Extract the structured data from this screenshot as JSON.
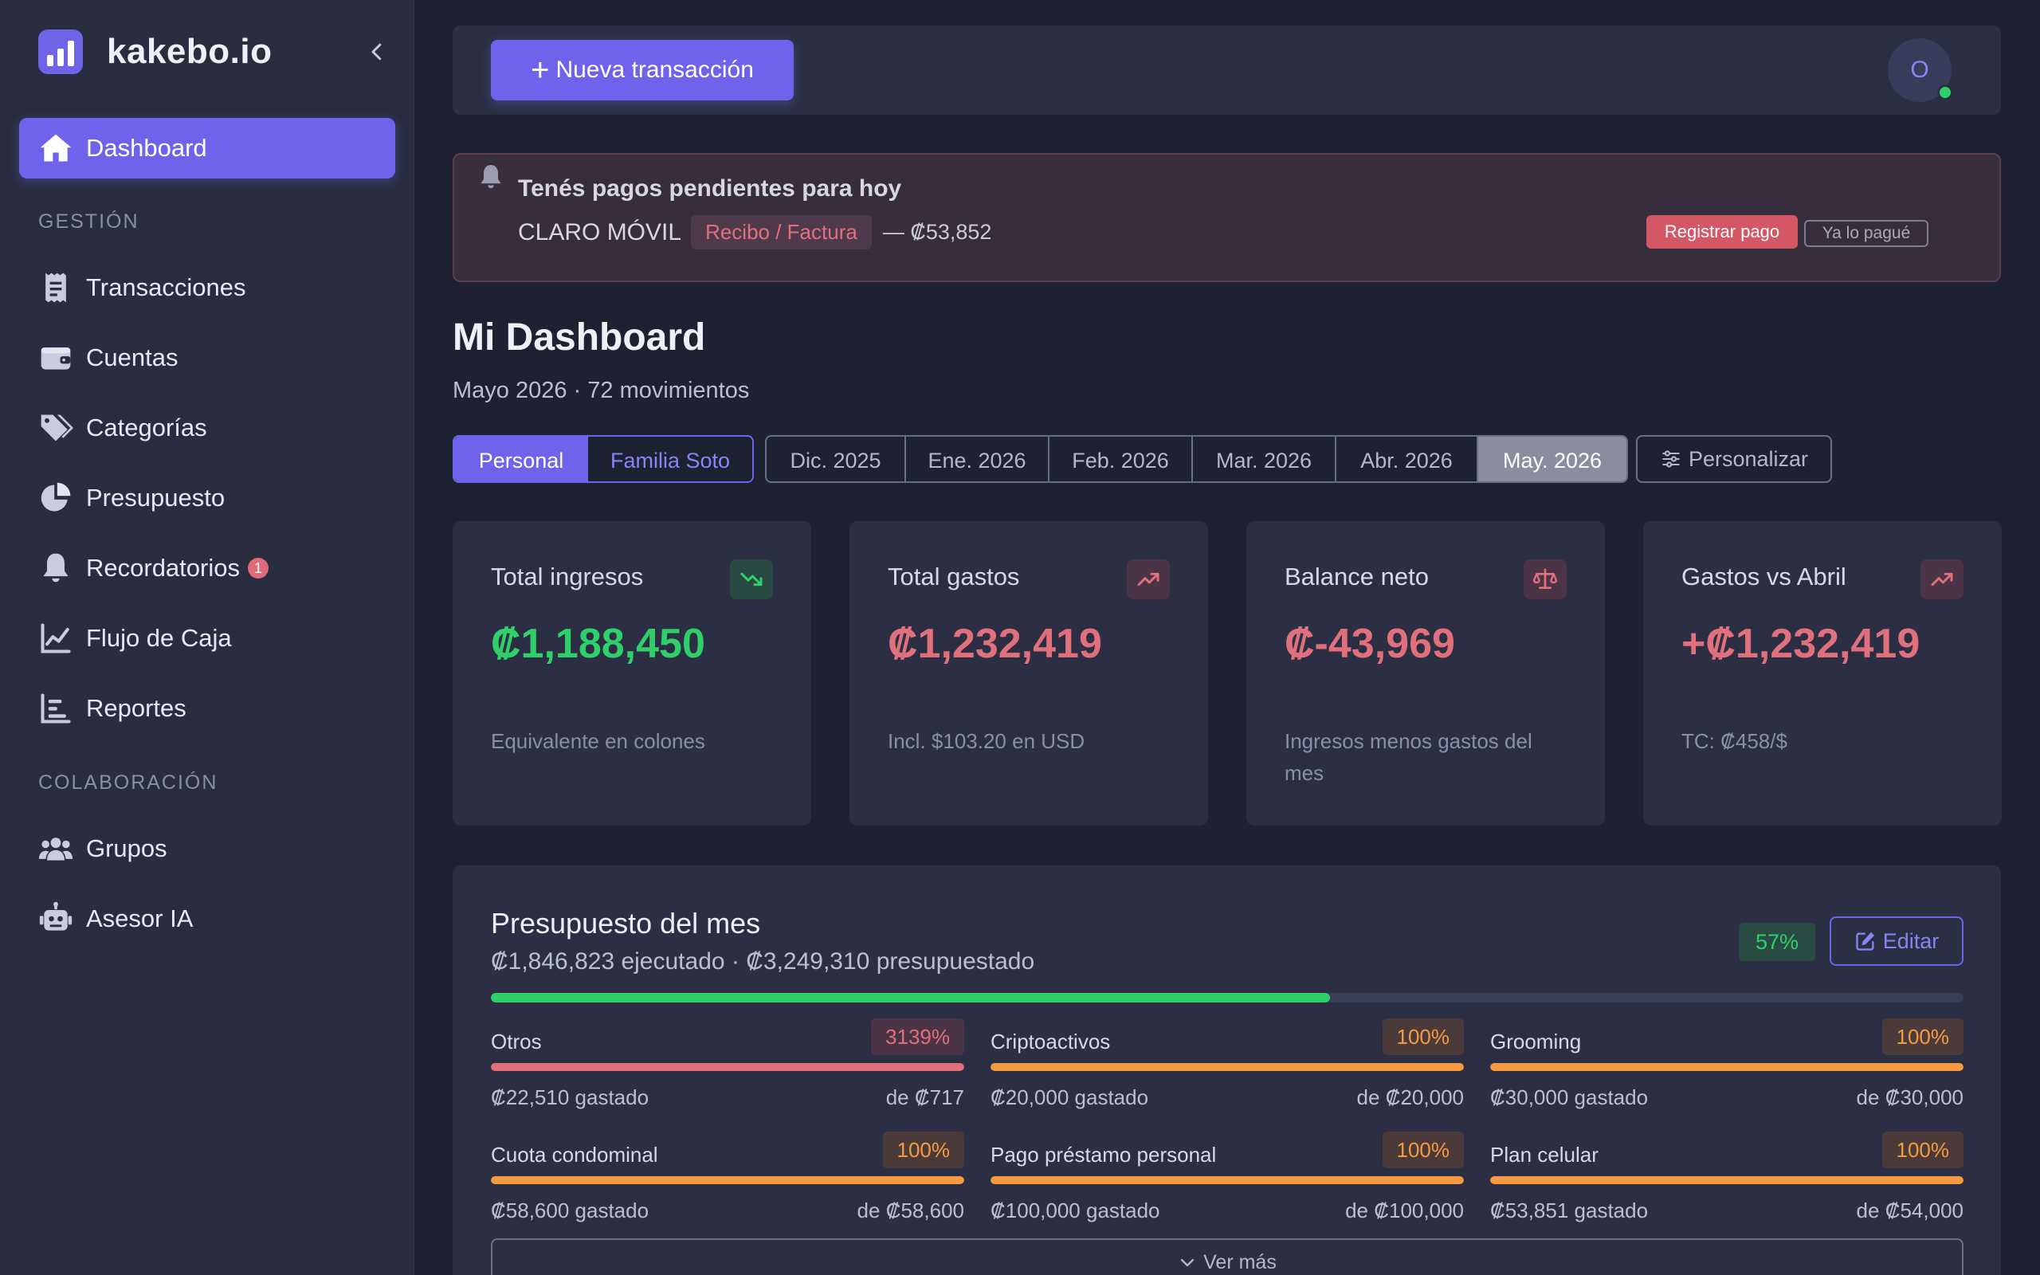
{
  "brand": {
    "name": "kakebo.io",
    "icon": "bar-chart-logo-icon"
  },
  "sidebar": {
    "active": {
      "label": "Dashboard",
      "icon": "home-icon"
    },
    "sections": [
      {
        "title": "GESTIÓN"
      },
      {
        "title": "COLABORACIÓN"
      }
    ],
    "items": [
      {
        "label": "Transacciones",
        "icon": "receipt-icon"
      },
      {
        "label": "Cuentas",
        "icon": "wallet-icon"
      },
      {
        "label": "Categorías",
        "icon": "tags-icon"
      },
      {
        "label": "Presupuesto",
        "icon": "pie-chart-icon"
      },
      {
        "label": "Recordatorios",
        "icon": "bell-icon",
        "badge": "1"
      },
      {
        "label": "Flujo de Caja",
        "icon": "line-chart-icon"
      },
      {
        "label": "Reportes",
        "icon": "bar-chart-icon"
      },
      {
        "label": "Grupos",
        "icon": "users-icon"
      },
      {
        "label": "Asesor IA",
        "icon": "robot-icon"
      }
    ]
  },
  "header": {
    "new_tx": "Nueva transacción",
    "avatar_initial": "O"
  },
  "alert": {
    "title": "Tenés pagos pendientes para hoy",
    "name": "CLARO MÓVIL",
    "tag": "Recibo / Factura",
    "amount": "— ₡53,852",
    "pay_label": "Registrar pago",
    "paid_label": "Ya lo pagué"
  },
  "page": {
    "title": "Mi Dashboard",
    "subtitle": "Mayo 2026 · 72 movimientos"
  },
  "filters": {
    "groups": [
      "Personal",
      "Familia Soto"
    ],
    "group_selected": "Personal",
    "months": [
      "Dic. 2025",
      "Ene. 2026",
      "Feb. 2026",
      "Mar. 2026",
      "Abr. 2026",
      "May. 2026"
    ],
    "month_selected": "May. 2026",
    "customize": "Personalizar"
  },
  "stats": [
    {
      "label": "Total ingresos",
      "value": "₡1,188,450",
      "note": "Equivalente en colones",
      "icon": "trending-down-icon",
      "color": "#2fd06a"
    },
    {
      "label": "Total gastos",
      "value": "₡1,232,419",
      "note": "Incl. $103.20 en USD",
      "icon": "trending-up-icon",
      "color": "#e0707c"
    },
    {
      "label": "Balance neto",
      "value": "₡-43,969",
      "note": "Ingresos menos gastos del mes",
      "icon": "scale-icon",
      "color": "#e0707c"
    },
    {
      "label": "Gastos vs Abril",
      "value": "+₡1,232,419",
      "note": "TC: ₡458/$",
      "icon": "trending-up-icon",
      "color": "#e0707c"
    }
  ],
  "budget": {
    "title": "Presupuesto del mes",
    "subtitle": "₡1,846,823 ejecutado · ₡3,249,310 presupuestado",
    "pct": "57%",
    "progress": 0.57,
    "edit_label": "Editar",
    "more_label": "Ver más",
    "items": [
      {
        "name": "Otros",
        "pct": "3139%",
        "spent": "₡22,510 gastado",
        "of": "de ₡717",
        "progress": 1.0,
        "color": "#e0707c"
      },
      {
        "name": "Criptoactivos",
        "pct": "100%",
        "spent": "₡20,000 gastado",
        "of": "de ₡20,000",
        "progress": 1.0,
        "color": "#f59a40"
      },
      {
        "name": "Grooming",
        "pct": "100%",
        "spent": "₡30,000 gastado",
        "of": "de ₡30,000",
        "progress": 1.0,
        "color": "#f59a40"
      },
      {
        "name": "Cuota condominal",
        "pct": "100%",
        "spent": "₡58,600 gastado",
        "of": "de ₡58,600",
        "progress": 1.0,
        "color": "#f59a40"
      },
      {
        "name": "Pago préstamo personal",
        "pct": "100%",
        "spent": "₡100,000 gastado",
        "of": "de ₡100,000",
        "progress": 1.0,
        "color": "#f59a40"
      },
      {
        "name": "Plan celular",
        "pct": "100%",
        "spent": "₡53,851 gastado",
        "of": "de ₡54,000",
        "progress": 1.0,
        "color": "#f59a40"
      }
    ]
  }
}
